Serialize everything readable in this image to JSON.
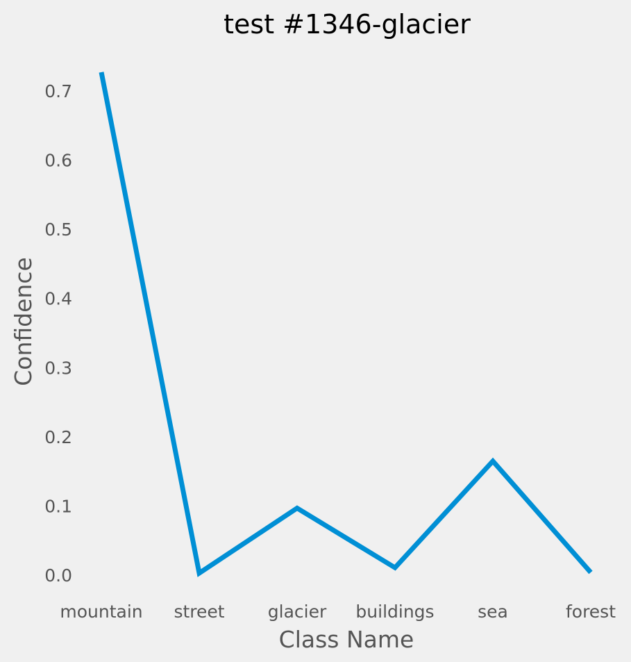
{
  "chart_data": {
    "type": "line",
    "title": "test #1346-glacier",
    "xlabel": "Class Name",
    "ylabel": "Confidence",
    "categories": [
      "mountain",
      "street",
      "glacier",
      "buildings",
      "sea",
      "forest"
    ],
    "series": [
      {
        "values": [
          0.727,
          0.003,
          0.097,
          0.011,
          0.165,
          0.004
        ]
      }
    ],
    "y_ticks": [
      "0.0",
      "0.1",
      "0.2",
      "0.3",
      "0.4",
      "0.5",
      "0.6",
      "0.7"
    ],
    "ylim": [
      -0.03,
      0.745
    ],
    "grid": false,
    "legend": "none",
    "colors": {
      "background": "#f0f0f0",
      "line": "#008fd5",
      "tick_text": "#555555",
      "title_text": "#000000"
    }
  }
}
